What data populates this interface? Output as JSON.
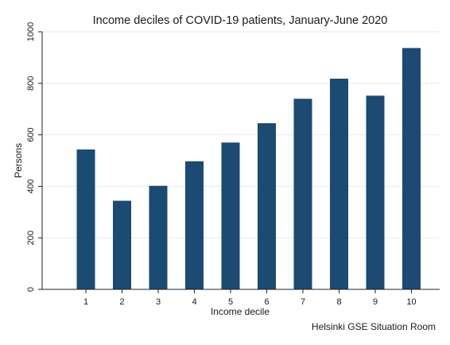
{
  "chart_data": {
    "type": "bar",
    "title": "Income deciles of COVID-19 patients, January-June 2020",
    "xlabel": "Income decile",
    "ylabel": "Persons",
    "categories": [
      "1",
      "2",
      "3",
      "4",
      "5",
      "6",
      "7",
      "8",
      "9",
      "10"
    ],
    "values": [
      543,
      344,
      402,
      497,
      570,
      645,
      740,
      818,
      752,
      937
    ],
    "ylim": [
      0,
      1000
    ],
    "yticks": [
      0,
      200,
      400,
      600,
      800,
      1000
    ],
    "grid": true,
    "bar_color": "#1b4a72",
    "note": "Helsinki GSE Situation Room"
  }
}
